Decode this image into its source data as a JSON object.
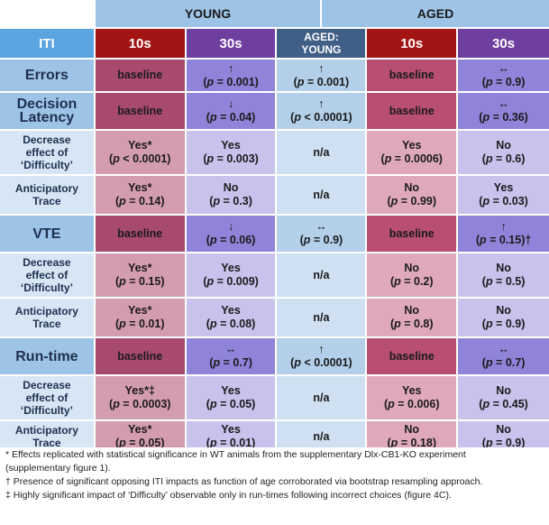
{
  "groups": {
    "young": "YOUNG",
    "aged": "AGED"
  },
  "columns": {
    "iti": "ITI",
    "y10": "10s",
    "y30": "30s",
    "aged_young_1": "AGED:",
    "aged_young_2": "YOUNG",
    "a10": "10s",
    "a30": "30s"
  },
  "rows": [
    {
      "label": [
        "Errors"
      ],
      "big": true,
      "cells": [
        [
          "baseline"
        ],
        [
          "↑",
          "(p = 0.001)"
        ],
        [
          "↑",
          "(p = 0.001)"
        ],
        [
          "baseline"
        ],
        [
          "↔",
          "(p = 0.9)"
        ]
      ]
    },
    {
      "label": [
        "Decision",
        "Latency"
      ],
      "big": true,
      "cells": [
        [
          "baseline"
        ],
        [
          "↓",
          "(p = 0.04)"
        ],
        [
          "↑",
          "(p < 0.0001)"
        ],
        [
          "baseline"
        ],
        [
          "↔",
          "(p = 0.36)"
        ]
      ]
    },
    {
      "label": [
        "Decrease",
        "effect of",
        "‘Difficulty’"
      ],
      "big": false,
      "cells": [
        [
          "Yes*",
          "(p < 0.0001)"
        ],
        [
          "Yes",
          "(p = 0.003)"
        ],
        [
          "n/a"
        ],
        [
          "Yes",
          "(p = 0.0006)"
        ],
        [
          "No",
          "(p = 0.6)"
        ]
      ]
    },
    {
      "label": [
        "Anticipatory",
        "Trace"
      ],
      "big": false,
      "cells": [
        [
          "Yes*",
          "(p = 0.14)"
        ],
        [
          "No",
          "(p = 0.3)"
        ],
        [
          "n/a"
        ],
        [
          "No",
          "(p = 0.99)"
        ],
        [
          "Yes",
          "(p = 0.03)"
        ]
      ]
    },
    {
      "label": [
        "VTE"
      ],
      "big": true,
      "cells": [
        [
          "baseline"
        ],
        [
          "↓",
          "(p = 0.06)"
        ],
        [
          "↔",
          "(p = 0.9)"
        ],
        [
          "baseline"
        ],
        [
          "↑",
          "(p = 0.15)†"
        ]
      ]
    },
    {
      "label": [
        "Decrease",
        "effect of",
        "‘Difficulty’"
      ],
      "big": false,
      "cells": [
        [
          "Yes*",
          "(p = 0.15)"
        ],
        [
          "Yes",
          "(p = 0.009)"
        ],
        [
          "n/a"
        ],
        [
          "No",
          "(p = 0.2)"
        ],
        [
          "No",
          "(p = 0.5)"
        ]
      ]
    },
    {
      "label": [
        "Anticipatory",
        "Trace"
      ],
      "big": false,
      "cells": [
        [
          "Yes*",
          "(p = 0.01)"
        ],
        [
          "Yes",
          "(p = 0.08)"
        ],
        [
          "n/a"
        ],
        [
          "No",
          "(p = 0.8)"
        ],
        [
          "No",
          "(p = 0.9)"
        ]
      ]
    },
    {
      "label": [
        "Run-time"
      ],
      "big": true,
      "cells": [
        [
          "baseline"
        ],
        [
          "↔",
          "(p = 0.7)"
        ],
        [
          "↑",
          "(p < 0.0001)"
        ],
        [
          "baseline"
        ],
        [
          "↔",
          "(p = 0.7)"
        ]
      ]
    },
    {
      "label": [
        "Decrease",
        "effect of",
        "‘Difficulty’"
      ],
      "big": false,
      "cells": [
        [
          "Yes*‡",
          "(p = 0.0003)"
        ],
        [
          "Yes",
          "(p = 0.05)"
        ],
        [
          "n/a"
        ],
        [
          "Yes",
          "(p = 0.006)"
        ],
        [
          "No",
          "(p = 0.45)"
        ]
      ]
    },
    {
      "label": [
        "Anticipatory",
        "Trace"
      ],
      "big": false,
      "cells": [
        [
          "Yes*",
          "(p = 0.05)"
        ],
        [
          "Yes",
          "(p = 0.01)"
        ],
        [
          "n/a"
        ],
        [
          "No",
          "(p = 0.18)"
        ],
        [
          "No",
          "(p = 0.9)"
        ]
      ]
    }
  ],
  "footnotes": [
    "* Effects replicated with statistical significance in WT animals from the supplementary Dlx-CB1-KO experiment",
    "(supplementary figure 1).",
    "† Presence of significant opposing ITI impacts as function of age corroborated via bootstrap resampling approach.",
    "‡ Highly significant impact of ‘Difficulty’ observable only in run-times following incorrect choices (figure 4C)."
  ],
  "colors": {
    "group_header": "#9dc3e6",
    "iti_header": "#5aa4e0",
    "young_10s_header": "#a31515",
    "young_30s_header": "#6f3fa0",
    "aged_young_header": "#3f5f86",
    "aged_10s_header": "#a31515",
    "aged_30s_header": "#6f3fa0",
    "label_main": "#9dc3e6",
    "label_sub": "#d6e6f5",
    "young_10s_baseline": "#a84a6e",
    "young_10s_light": "#d49cb0",
    "young_30s_main": "#8f84d9",
    "young_30s_light": "#c8c2ec",
    "aged_young_main": "#b3cfe9",
    "aged_young_light": "#cfe0f2",
    "aged_10s_baseline": "#b84f72",
    "aged_10s_light": "#dfa9bb",
    "aged_30s_main": "#8f84d9",
    "aged_30s_light": "#c8c2ec"
  }
}
